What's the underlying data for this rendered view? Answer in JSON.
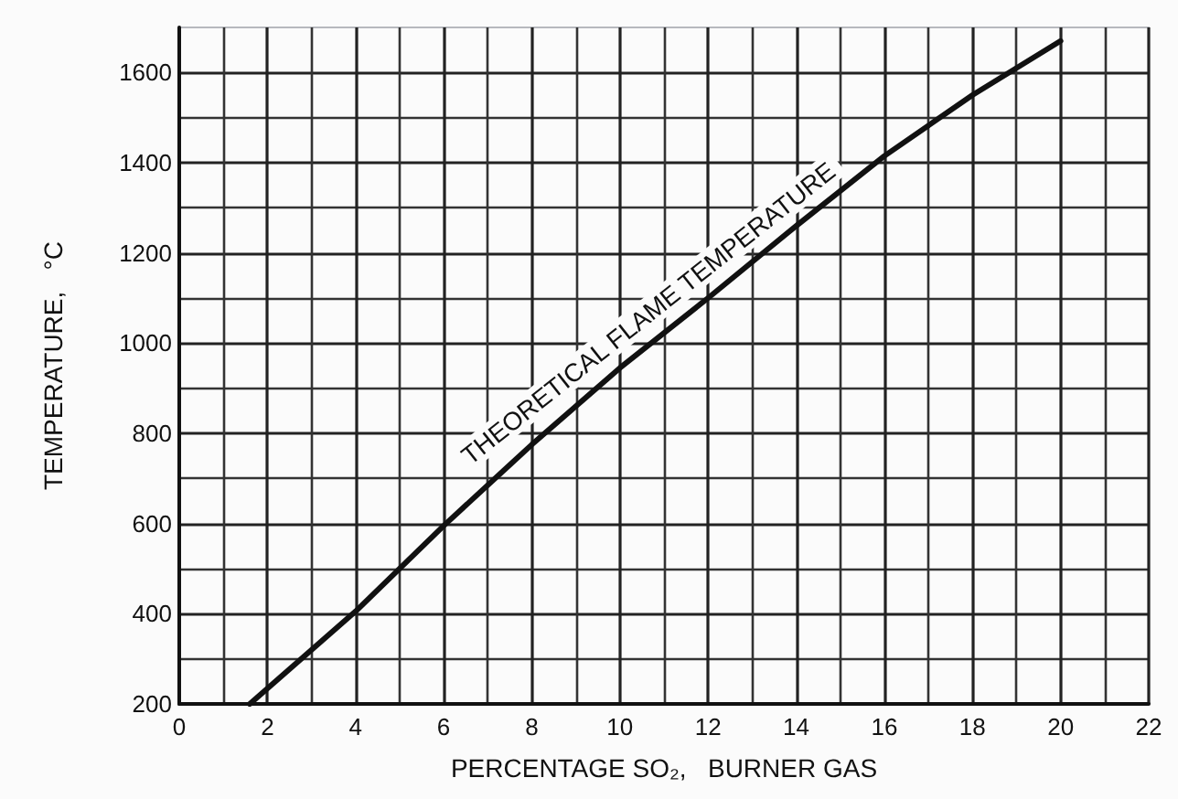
{
  "chart_data": {
    "type": "line",
    "xlabel": "PERCENTAGE SO₂,   BURNER GAS",
    "ylabel": "TEMPERATURE,   °C",
    "xlim": [
      0,
      22
    ],
    "xticks": [
      0,
      2,
      4,
      6,
      8,
      10,
      12,
      14,
      16,
      18,
      20,
      22
    ],
    "ylim": [
      200,
      1700
    ],
    "yticks": [
      200,
      400,
      600,
      800,
      1000,
      1200,
      1400,
      1600
    ],
    "grid": true,
    "legend": false,
    "marker": "none",
    "line_style": "solid",
    "series": [
      {
        "name": "THEORETICAL FLAME TEMPERATURE",
        "color": "#111111",
        "x": [
          1.6,
          4,
          6,
          8,
          10,
          12,
          14,
          16,
          18,
          20
        ],
        "values": [
          200,
          405,
          595,
          775,
          945,
          1100,
          1260,
          1415,
          1550,
          1670
        ]
      }
    ]
  }
}
